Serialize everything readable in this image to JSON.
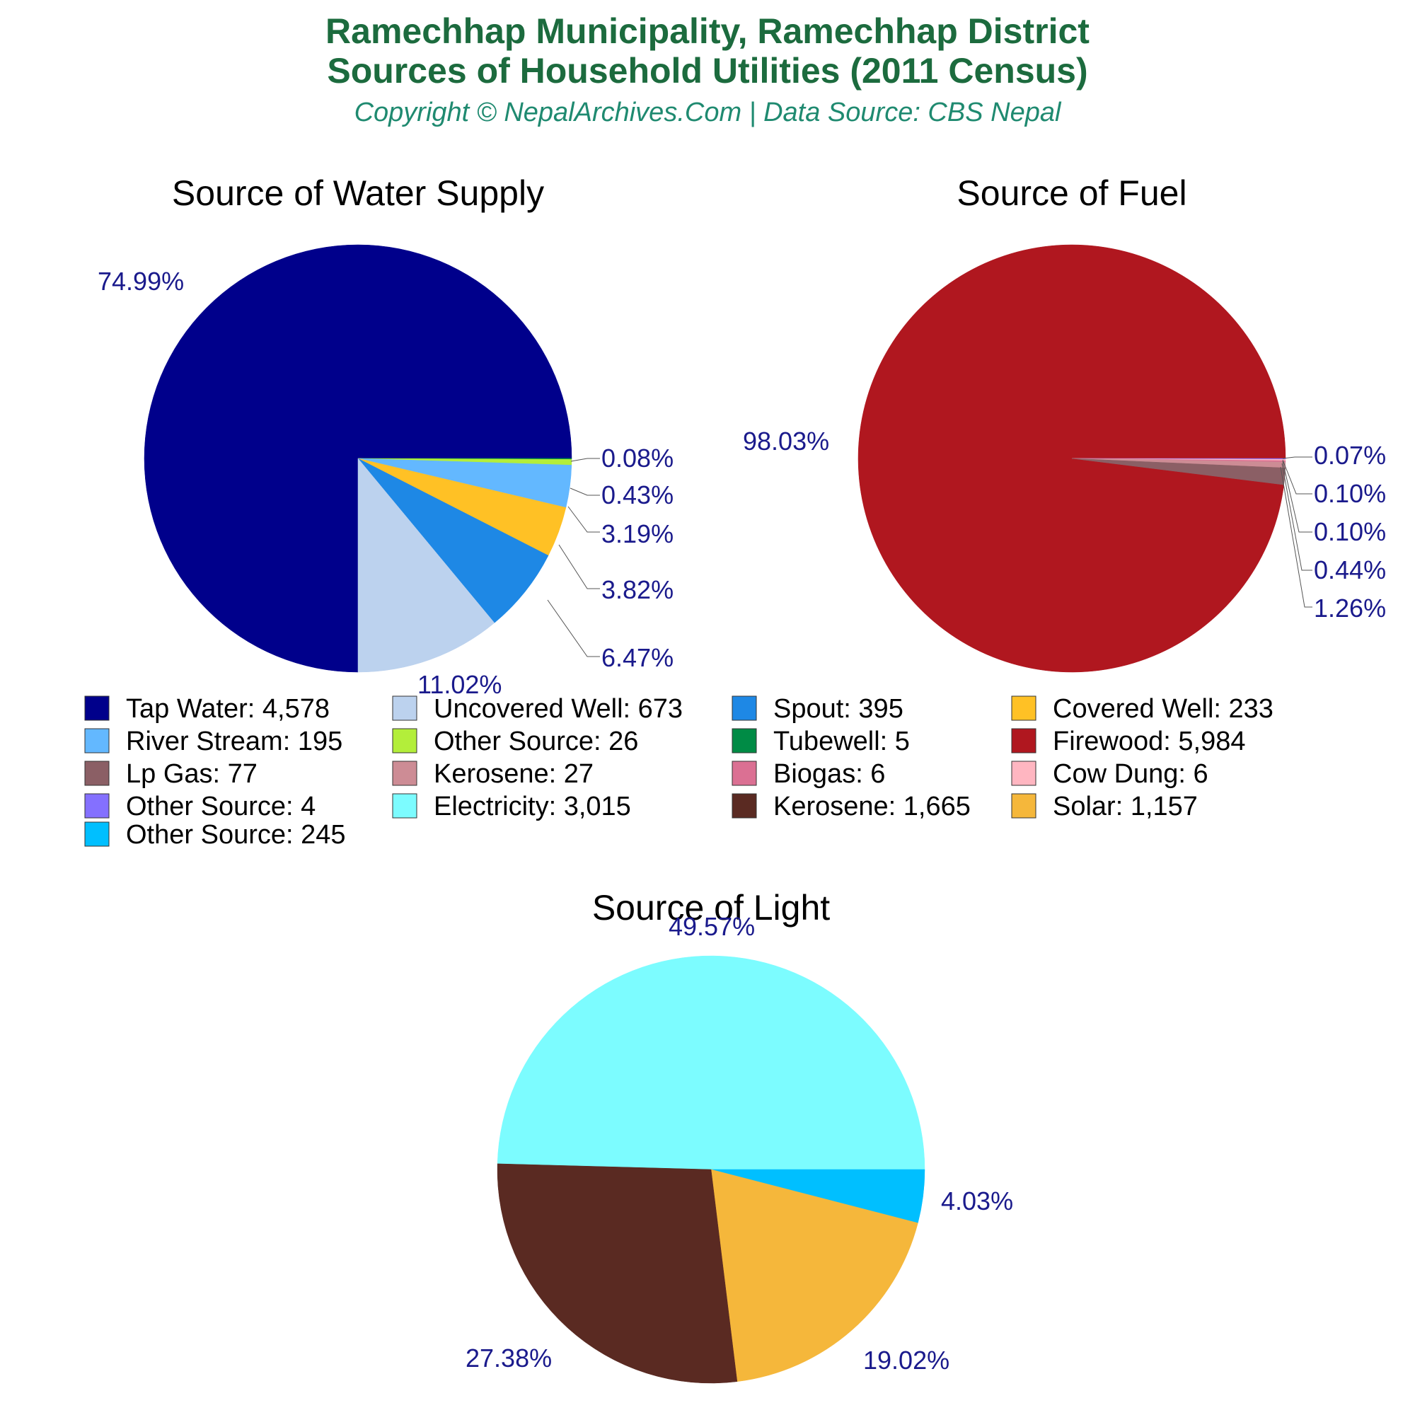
{
  "header": {
    "title_line1": "Ramechhap Municipality, Ramechhap District",
    "title_line2": "Sources of Household Utilities (2011 Census)",
    "subtitle": "Copyright © NepalArchives.Com | Data Source: CBS Nepal"
  },
  "chart_data": [
    {
      "type": "pie",
      "title": "Source of Water Supply",
      "slices": [
        {
          "label": "Tap Water",
          "value": 4578,
          "pct": "74.99%",
          "color": "#00008b"
        },
        {
          "label": "Uncovered Well",
          "value": 673,
          "pct": "11.02%",
          "color": "#bcd2ee"
        },
        {
          "label": "Spout",
          "value": 395,
          "pct": "6.47%",
          "color": "#1e88e5"
        },
        {
          "label": "Covered Well",
          "value": 233,
          "pct": "3.82%",
          "color": "#ffc125"
        },
        {
          "label": "River Stream",
          "value": 195,
          "pct": "3.19%",
          "color": "#63b8ff"
        },
        {
          "label": "Other Source",
          "value": 26,
          "pct": "0.43%",
          "color": "#b3ee3a"
        },
        {
          "label": "Tubewell",
          "value": 5,
          "pct": "0.08%",
          "color": "#008b45"
        }
      ]
    },
    {
      "type": "pie",
      "title": "Source of Fuel",
      "slices": [
        {
          "label": "Firewood",
          "value": 5984,
          "pct": "98.03%",
          "color": "#b0171f"
        },
        {
          "label": "Lp Gas",
          "value": 77,
          "pct": "1.26%",
          "color": "#8b5f65"
        },
        {
          "label": "Kerosene",
          "value": 27,
          "pct": "0.44%",
          "color": "#cd8c95"
        },
        {
          "label": "Biogas",
          "value": 6,
          "pct": "0.10%",
          "color": "#db7093"
        },
        {
          "label": "Cow Dung",
          "value": 6,
          "pct": "0.10%",
          "color": "#ffb6c1"
        },
        {
          "label": "Other Source",
          "value": 4,
          "pct": "0.07%",
          "color": "#8470ff"
        }
      ]
    },
    {
      "type": "pie",
      "title": "Source of Light",
      "slices": [
        {
          "label": "Electricity",
          "value": 3015,
          "pct": "49.57%",
          "color": "#7cfcff"
        },
        {
          "label": "Kerosene",
          "value": 1665,
          "pct": "27.38%",
          "color": "#5a2a22"
        },
        {
          "label": "Solar",
          "value": 1157,
          "pct": "19.02%",
          "color": "#f5b73b"
        },
        {
          "label": "Other Source",
          "value": 245,
          "pct": "4.03%",
          "color": "#00bfff"
        }
      ]
    }
  ],
  "legend": [
    {
      "text": "Tap Water: 4,578",
      "color": "#00008b"
    },
    {
      "text": "Uncovered Well: 673",
      "color": "#bcd2ee"
    },
    {
      "text": "Spout: 395",
      "color": "#1e88e5"
    },
    {
      "text": "Covered Well: 233",
      "color": "#ffc125"
    },
    {
      "text": "River Stream: 195",
      "color": "#63b8ff"
    },
    {
      "text": "Other Source: 26",
      "color": "#b3ee3a"
    },
    {
      "text": "Tubewell: 5",
      "color": "#008b45"
    },
    {
      "text": "Firewood: 5,984",
      "color": "#b0171f"
    },
    {
      "text": "Lp Gas: 77",
      "color": "#8b5f65"
    },
    {
      "text": "Kerosene: 27",
      "color": "#cd8c95"
    },
    {
      "text": "Biogas: 6",
      "color": "#db7093"
    },
    {
      "text": "Cow Dung: 6",
      "color": "#ffb6c1"
    },
    {
      "text": "Other Source: 4",
      "color": "#8470ff"
    },
    {
      "text": "Electricity: 3,015",
      "color": "#7cfcff"
    },
    {
      "text": "Kerosene: 1,665",
      "color": "#5a2a22"
    },
    {
      "text": "Solar: 1,157",
      "color": "#f5b73b"
    },
    {
      "text": "Other Source: 245",
      "color": "#00bfff"
    }
  ]
}
